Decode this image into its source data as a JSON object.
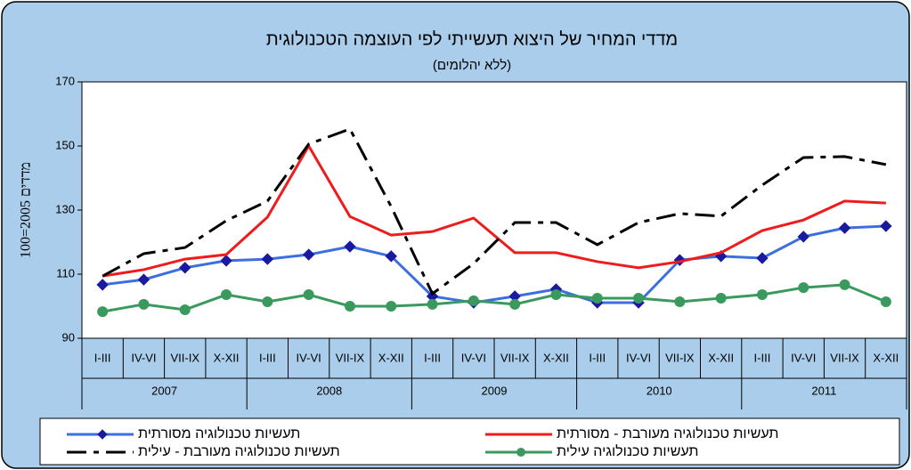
{
  "chart_data": {
    "type": "line",
    "title": "מדדי המחיר של היצוא תעשייתי לפי העוצמה הטכנולוגית",
    "subtitle": "(ללא יהלומים)",
    "y_label": "מדדים 2005=100",
    "categories": [
      "I-III",
      "IV-VI",
      "VII-IX",
      "X-XII",
      "I-III",
      "IV-VI",
      "VII-IX",
      "X-XII",
      "I-III",
      "IV-VI",
      "VII-IX",
      "X-XII",
      "I-III",
      "IV-VI",
      "VII-IX",
      "X-XII",
      "I-III",
      "IV-VI",
      "VII-IX",
      "X-XII"
    ],
    "years": [
      "2007",
      "2008",
      "2009",
      "2010",
      "2011"
    ],
    "ylim": [
      90,
      170
    ],
    "yticks": [
      90,
      110,
      130,
      150,
      170
    ],
    "series": [
      {
        "name": "תעשיות טכנולוגיה מסורתית",
        "color": "#3b6fe0",
        "line_style": "solid",
        "marker": "diamond",
        "values": [
          106.7,
          108.3,
          112.0,
          114.2,
          114.7,
          116.1,
          118.6,
          115.6,
          103.1,
          101.1,
          103.1,
          105.3,
          101.1,
          101.1,
          114.4,
          115.6,
          115.0,
          121.7,
          124.4,
          125.0
        ]
      },
      {
        "name": "תעשיות טכנולוגיה מעורבת - מסורתית",
        "color": "#ee1c1c",
        "line_style": "solid",
        "marker": "none",
        "values": [
          109.4,
          111.4,
          114.7,
          116.1,
          127.8,
          150.0,
          128.0,
          122.2,
          123.3,
          127.5,
          116.7,
          116.7,
          113.9,
          112.0,
          113.9,
          116.7,
          123.6,
          126.9,
          132.8,
          132.2
        ]
      },
      {
        "name": "תעשיות טכנולוגיה מעורבת - עילית",
        "color": "#000000",
        "line_style": "dashed",
        "marker": "none",
        "values": [
          109.4,
          116.4,
          118.3,
          126.7,
          132.8,
          150.6,
          155.3,
          131.1,
          103.9,
          113.3,
          126.1,
          126.1,
          119.2,
          126.1,
          128.9,
          128.1,
          137.8,
          146.4,
          146.7,
          144.2
        ]
      },
      {
        "name": "תעשיות טכנולוגיה עילית",
        "color": "#3a9a5e",
        "line_style": "solid",
        "marker": "circle",
        "values": [
          98.3,
          100.6,
          98.9,
          103.6,
          101.4,
          103.6,
          100.0,
          100.0,
          100.6,
          101.7,
          100.6,
          103.6,
          102.5,
          102.5,
          101.4,
          102.5,
          103.6,
          105.8,
          106.7,
          101.4
        ]
      }
    ]
  }
}
